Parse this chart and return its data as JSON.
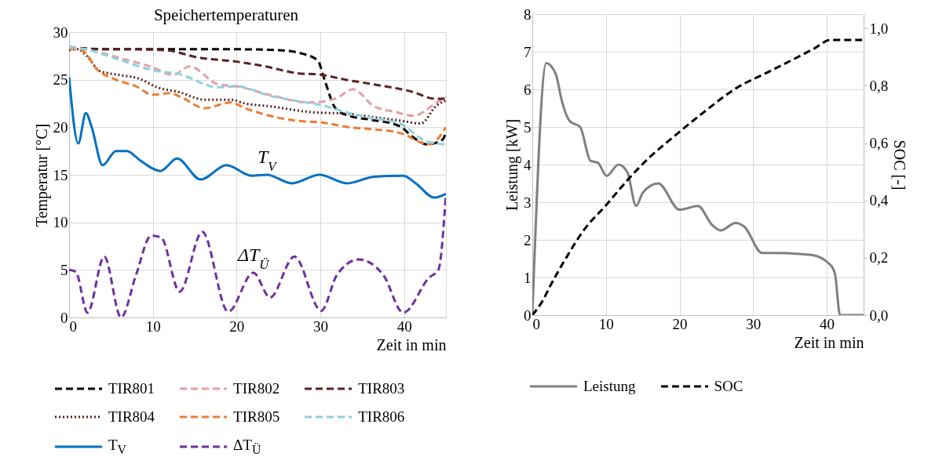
{
  "chart_data": [
    {
      "type": "line",
      "title": "Speichertemperaturen",
      "xlabel": "Zeit in min",
      "ylabel": "Temperatur [°C]",
      "xlim": [
        0,
        45
      ],
      "xticks": [
        0,
        10,
        20,
        30,
        40
      ],
      "ylim": [
        0,
        30
      ],
      "yticks": [
        0,
        5,
        10,
        15,
        20,
        25,
        30
      ],
      "grid": true,
      "legend": "bottom",
      "annotations": [
        {
          "text": "T$_{V}$",
          "x": 23.6,
          "y": 15.0
        },
        {
          "text": "ΔT$_{Ü}$",
          "x": 22,
          "y": 4.7
        }
      ],
      "series": [
        {
          "name": "TIR801",
          "color": "#000000",
          "line_style": "dashed",
          "x": [
            0,
            5,
            10,
            15,
            20,
            25,
            28,
            29.7,
            30.5,
            31.8,
            33.4,
            36,
            39.5,
            41,
            42.7,
            44.6,
            45
          ],
          "values": [
            28.4,
            28.2,
            28.2,
            28.2,
            28.2,
            28.1,
            27.7,
            27.0,
            25,
            22.0,
            21.2,
            20.8,
            20.1,
            19.0,
            18.2,
            18.7,
            19.5
          ]
        },
        {
          "name": "TIR802",
          "color": "#e3a1a0",
          "line_style": "dashed",
          "x": [
            0,
            3,
            6.8,
            10,
            12.4,
            14.4,
            17.8,
            20,
            24,
            28.7,
            31.8,
            33.9,
            36.4,
            39,
            41.1,
            43.9,
            45
          ],
          "values": [
            28.5,
            28.0,
            27.1,
            26.3,
            25.5,
            26.4,
            24.5,
            24.3,
            23.4,
            22.6,
            23.0,
            24.0,
            22.2,
            21.6,
            21.2,
            22.6,
            23.2
          ]
        },
        {
          "name": "TIR803",
          "color": "#5b2120",
          "line_style": "dashed",
          "x": [
            0,
            5,
            8,
            11.5,
            15.6,
            20,
            23.4,
            27.1,
            30.2,
            33,
            36.4,
            41.1,
            43.6,
            45
          ],
          "values": [
            28.3,
            28.2,
            28.2,
            28.1,
            27.3,
            26.9,
            26.4,
            25.7,
            25.5,
            25.0,
            24.5,
            23.7,
            23.0,
            23.0
          ]
        },
        {
          "name": "TIR804",
          "color": "#5b2120",
          "line_style": "dotted",
          "x": [
            0,
            1,
            2.1,
            3.7,
            6,
            8.4,
            10.5,
            13.1,
            16.2,
            19.3,
            21,
            24,
            28.7,
            33.4,
            36,
            39.5,
            42,
            43.9,
            45
          ],
          "values": [
            28.1,
            28.2,
            27.5,
            25.9,
            25.5,
            25.1,
            24.2,
            23.7,
            22.9,
            22.9,
            22.5,
            22.2,
            21.6,
            21.4,
            21.1,
            20.7,
            20.4,
            22.3,
            22.8
          ]
        },
        {
          "name": "TIR805",
          "color": "#ed7d31",
          "line_style": "dashed",
          "x": [
            0,
            1,
            2,
            3.1,
            5.3,
            8,
            10,
            12,
            13.5,
            16.2,
            19.3,
            21,
            24,
            27,
            30.2,
            33.4,
            36,
            39.5,
            43,
            45
          ],
          "values": [
            28.3,
            28.2,
            27.8,
            26.3,
            25.1,
            24.3,
            23.4,
            23.6,
            23.1,
            22.0,
            22.6,
            22.0,
            21.2,
            20.7,
            20.5,
            20.0,
            19.8,
            19.4,
            18.2,
            20.0
          ]
        },
        {
          "name": "TIR806",
          "color": "#8fd0e0",
          "line_style": "dashed",
          "x": [
            0,
            2,
            5.3,
            10,
            13.1,
            17.8,
            20,
            24,
            27,
            30.2,
            33.4,
            36,
            39.5,
            42.7,
            45
          ],
          "values": [
            28.4,
            28.2,
            27.3,
            26.0,
            25.6,
            24.2,
            24.3,
            23.3,
            22.8,
            22.3,
            21.5,
            21.0,
            20.4,
            18.5,
            18.2
          ]
        },
        {
          "name": "T$_{V}$",
          "color": "#0070c0",
          "line_style": "solid",
          "x": [
            0,
            1.1,
            2,
            2.7,
            4,
            5.6,
            6.9,
            8.5,
            10.9,
            12.9,
            15.7,
            18.8,
            21.8,
            23.6,
            26.6,
            29.9,
            33.2,
            36.4,
            39.9,
            41.4,
            43.6,
            45
          ],
          "values": [
            25.3,
            18.3,
            21.5,
            20,
            16.0,
            17.5,
            17.5,
            16.5,
            15.4,
            16.7,
            14.5,
            16.0,
            14.9,
            15.0,
            14.1,
            15.0,
            14.1,
            14.8,
            14.9,
            14.1,
            12.6,
            13.0
          ]
        },
        {
          "name": "ΔT$_{Ü}$",
          "color": "#7030a0",
          "line_style": "dashed",
          "x": [
            0,
            0.8,
            2.2,
            4.2,
            6.2,
            8,
            9.8,
            11,
            13.2,
            15.9,
            19,
            22,
            24,
            26.9,
            30.1,
            32,
            34.6,
            37.5,
            39.9,
            43,
            44.1,
            45
          ],
          "values": [
            5.0,
            4.8,
            0.5,
            6.4,
            0,
            4.5,
            8.6,
            8.4,
            2.7,
            9.0,
            0.6,
            4.7,
            2.1,
            6.4,
            0.7,
            4.5,
            6.1,
            4.5,
            0.5,
            4.2,
            5.0,
            13.0
          ]
        }
      ]
    },
    {
      "type": "line",
      "xlabel": "Zeit in min",
      "ylabel": "Leistung [kW]",
      "y2label": "SOC [-]",
      "xlim": [
        0,
        45
      ],
      "xticks": [
        0,
        10,
        20,
        30,
        40
      ],
      "ylim": [
        0,
        8
      ],
      "yticks": [
        0,
        1,
        2,
        3,
        4,
        5,
        6,
        7,
        8
      ],
      "y2lim": [
        0,
        1.05
      ],
      "y2ticks": [
        {
          "value": 0,
          "label": "0,0"
        },
        {
          "value": 0.2,
          "label": "0,2"
        },
        {
          "value": 0.4,
          "label": "0,4"
        },
        {
          "value": 0.6,
          "label": "0,6"
        },
        {
          "value": 0.8,
          "label": "0,8"
        },
        {
          "value": 1.0,
          "label": "1,0"
        }
      ],
      "grid": true,
      "legend": "bottom",
      "series": [
        {
          "name": "Leistung",
          "color": "#808080",
          "line_style": "solid",
          "x": [
            0,
            1.9,
            3.2,
            4.0,
            5.1,
            6.5,
            7.9,
            8.9,
            10.1,
            11.7,
            12.9,
            14.1,
            15,
            17.1,
            20,
            22.5,
            24.4,
            25.6,
            27.6,
            28.8,
            31.2,
            32.9,
            37.9,
            40.4,
            41.1,
            41.8,
            43,
            45
          ],
          "values": [
            0,
            6.7,
            6.4,
            5.7,
            5.15,
            5.0,
            4.1,
            4.05,
            3.7,
            4.0,
            3.8,
            2.9,
            3.25,
            3.5,
            2.8,
            2.9,
            2.4,
            2.25,
            2.45,
            2.35,
            1.65,
            1.65,
            1.6,
            1.35,
            1.1,
            0,
            0,
            0
          ]
        },
        {
          "name": "SOC",
          "color": "#000000",
          "line_style": "dashed",
          "axis": "y2",
          "x": [
            0,
            1.4,
            2.4,
            4.6,
            7.1,
            9.9,
            12.9,
            15.9,
            19.1,
            23.4,
            27.6,
            32.2,
            38.3,
            40.5,
            45
          ],
          "values": [
            0,
            0.05,
            0.1,
            0.2,
            0.3,
            0.38,
            0.47,
            0.55,
            0.62,
            0.71,
            0.79,
            0.85,
            0.93,
            0.96,
            0.96
          ]
        }
      ]
    }
  ]
}
